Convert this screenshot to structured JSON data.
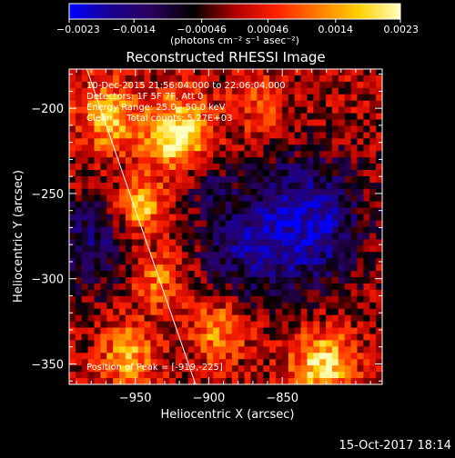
{
  "chart_data": {
    "type": "heatmap",
    "title": "Reconstructed RHESSI Image",
    "xlabel": "Heliocentric X (arcsec)",
    "ylabel": "Heliocentric Y (arcsec)",
    "xlim": [
      -995,
      -782
    ],
    "ylim": [
      -362,
      -177
    ],
    "x_ticks": [
      -950,
      -900,
      -850
    ],
    "y_ticks": [
      -350,
      -300,
      -250,
      -200
    ],
    "x_tick_labels": [
      "−950",
      "−900",
      "−850"
    ],
    "y_tick_labels": [
      "−350",
      "−300",
      "−250",
      "−200"
    ],
    "colorbar": {
      "range": [
        -0.0023,
        0.0023
      ],
      "tick_values": [
        -0.0023,
        -0.0014,
        -0.00046,
        0.00046,
        0.0014,
        0.0023
      ],
      "tick_labels": [
        "−0.0023",
        "−0.0014",
        "−0.00046",
        "0.00046",
        "0.0014",
        "0.0023"
      ],
      "unit_label": "(photons cm⁻² s⁻¹ asec⁻²)",
      "colors": [
        "#0000ff",
        "#1a0090",
        "#2a005a",
        "#000000",
        "#b00000",
        "#ff2000",
        "#ff7a00",
        "#ffd000",
        "#ffffc0"
      ]
    },
    "annotations": [
      "10-Dec-2015 21:56:04.000 to 22:06:04.000",
      "Detectors: 1F 5F 7F, Att 0",
      "Energy Range: 25.0 - 50.0 keV",
      "Clean     Total counts: 5.27E+03",
      "Position of Peak = [-919,-225]"
    ],
    "sources": [
      {
        "x": -922,
        "y": -215,
        "amp": 1.0,
        "sigma": 15
      },
      {
        "x": -947,
        "y": -257,
        "amp": 0.85,
        "sigma": 10
      },
      {
        "x": -968,
        "y": -205,
        "amp": 0.7,
        "sigma": 14
      },
      {
        "x": -955,
        "y": -345,
        "amp": 0.7,
        "sigma": 12
      },
      {
        "x": -822,
        "y": -350,
        "amp": 0.9,
        "sigma": 14
      },
      {
        "x": -893,
        "y": -330,
        "amp": 0.6,
        "sigma": 12
      },
      {
        "x": -935,
        "y": -300,
        "amp": 0.5,
        "sigma": 12
      },
      {
        "x": -865,
        "y": -200,
        "amp": 0.35,
        "sigma": 12
      },
      {
        "x": -835,
        "y": -268,
        "amp": -0.85,
        "sigma": 28
      },
      {
        "x": -880,
        "y": -282,
        "amp": -0.45,
        "sigma": 20
      },
      {
        "x": -980,
        "y": -280,
        "amp": -0.55,
        "sigma": 20
      },
      {
        "x": -900,
        "y": -245,
        "amp": -0.35,
        "sigma": 12
      }
    ],
    "limb_line": [
      [
        -983,
        -177
      ],
      [
        -909,
        -362
      ]
    ],
    "grid": false
  },
  "footer": {
    "date": "15-Oct-2017 18:14"
  }
}
